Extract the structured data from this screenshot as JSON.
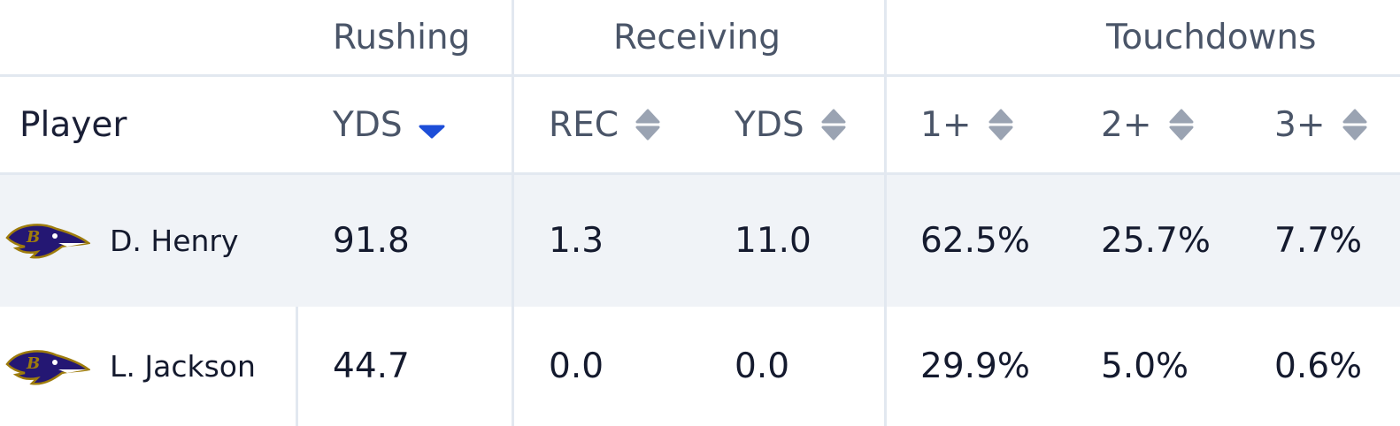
{
  "group_headers": [
    "Rushing",
    "Receiving",
    "Touchdowns"
  ],
  "columns": [
    "Player",
    "YDS",
    "REC",
    "YDS",
    "1+",
    "2+",
    "3+"
  ],
  "rows": [
    [
      "D. Henry",
      "91.8",
      "1.3",
      "11.0",
      "62.5%",
      "25.7%",
      "7.7%"
    ],
    [
      "L. Jackson",
      "44.7",
      "0.0",
      "0.0",
      "29.9%",
      "5.0%",
      "0.6%"
    ]
  ]
}
